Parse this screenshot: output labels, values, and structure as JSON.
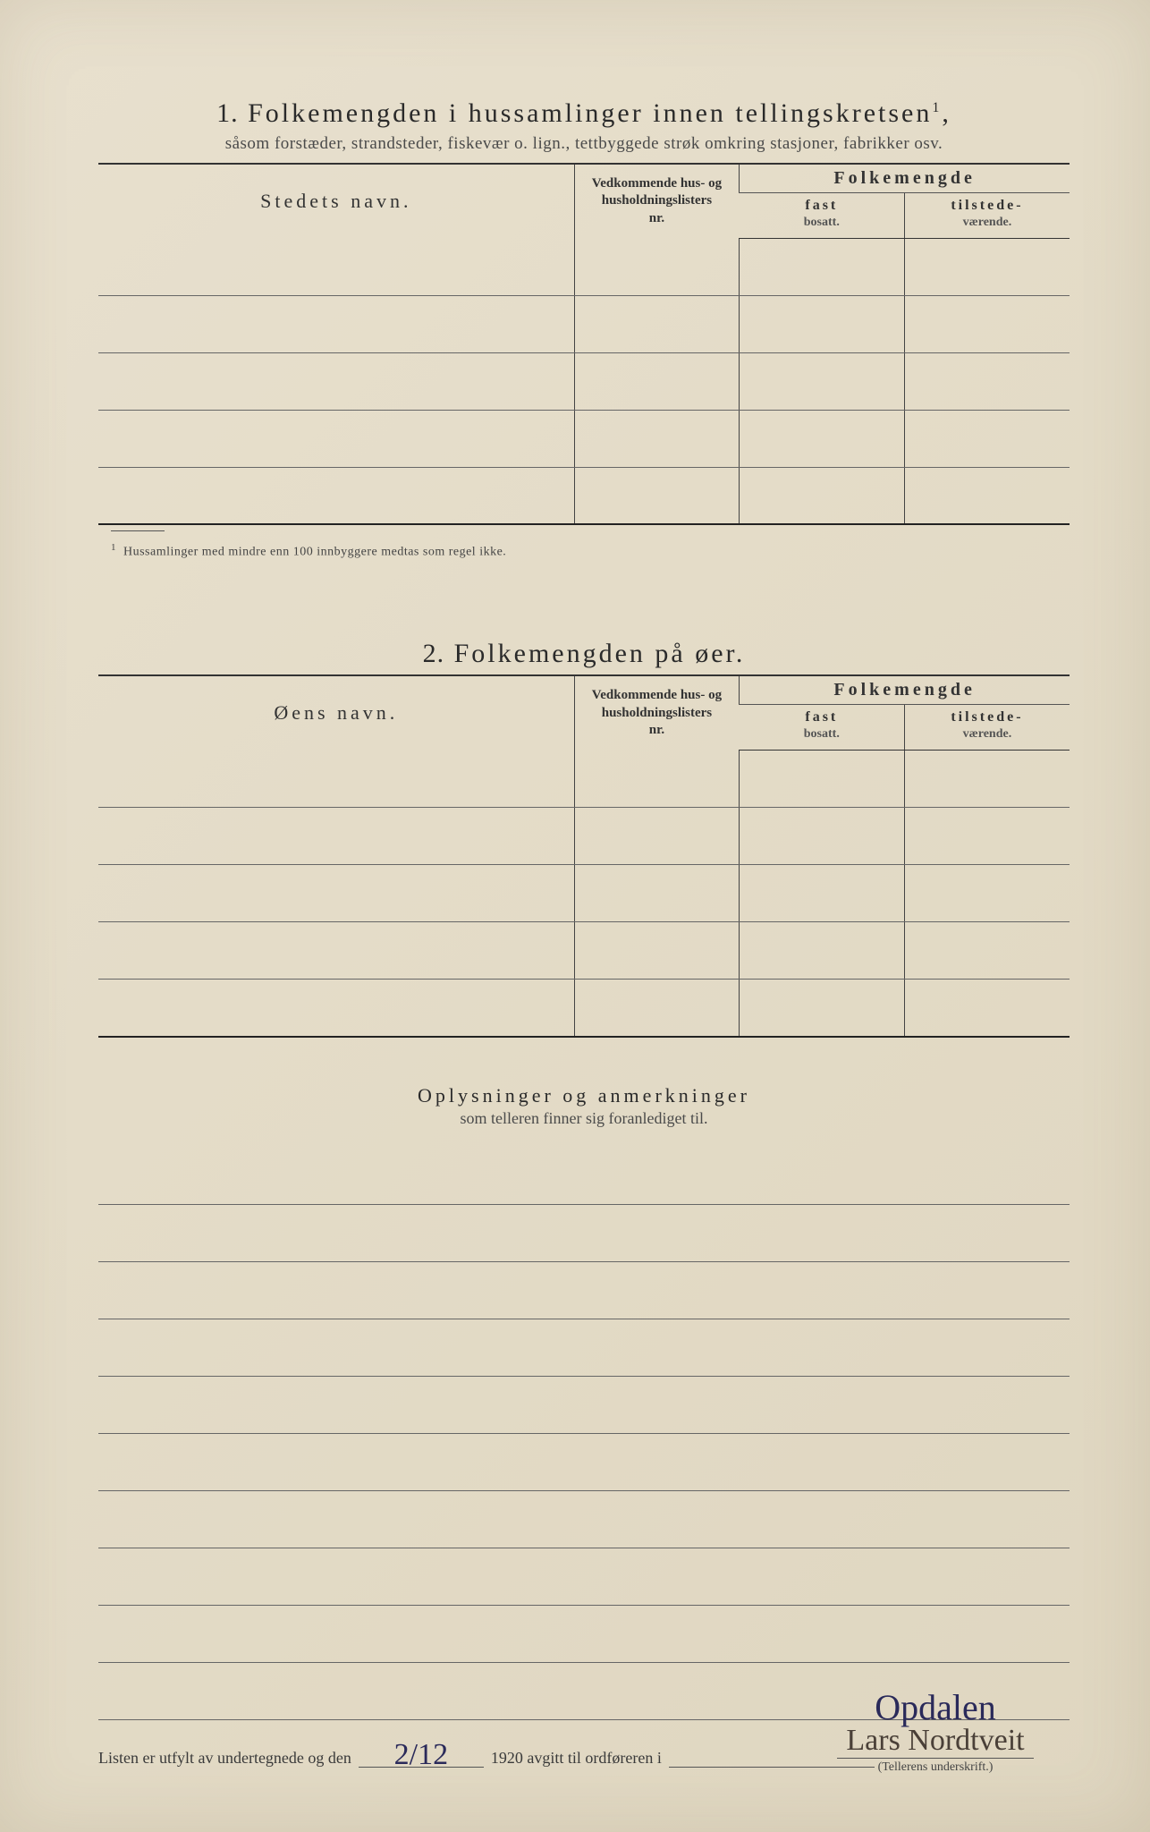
{
  "section1": {
    "number": "1.",
    "title": "Folkemengden i hussamlinger innen tellingskretsen",
    "title_sup": "1",
    "subtitle": "såsom forstæder, strandsteder, fiskevær o. lign., tettbyggede strøk omkring stasjoner, fabrikker osv.",
    "col_name": "Stedets navn.",
    "col_ref_l1": "Vedkommende hus- og",
    "col_ref_l2": "husholdningslisters",
    "col_ref_l3": "nr.",
    "col_pop_header": "Folkemengde",
    "col_fast_l1": "fast",
    "col_fast_l2": "bosatt.",
    "col_tilst_l1": "tilstede-",
    "col_tilst_l2": "værende.",
    "row_count": 5,
    "footnote_sup": "1",
    "footnote": "Hussamlinger med mindre enn 100 innbyggere medtas som regel ikke."
  },
  "section2": {
    "number": "2.",
    "title": "Folkemengden på øer.",
    "col_name": "Øens navn.",
    "col_ref_l1": "Vedkommende hus- og",
    "col_ref_l2": "husholdningslisters",
    "col_ref_l3": "nr.",
    "col_pop_header": "Folkemengde",
    "col_fast_l1": "fast",
    "col_fast_l2": "bosatt.",
    "col_tilst_l1": "tilstede-",
    "col_tilst_l2": "værende.",
    "row_count": 5
  },
  "section3": {
    "title": "Oplysninger og anmerkninger",
    "subtitle": "som telleren finner sig foranlediget til.",
    "line_count": 10
  },
  "footer": {
    "text_a": "Listen er utfylt av undertegnede og den",
    "date_hand": "2/12",
    "text_b": "1920 avgitt til ordføreren i",
    "place_hand": "Opdalen",
    "signature": "Lars Nordtveit",
    "sig_label": "(Tellerens underskrift.)"
  },
  "colors": {
    "paper": "#e4dcc8",
    "ink": "#2a2a2a",
    "rule": "#555555",
    "handwriting": "#2a2a5a"
  }
}
